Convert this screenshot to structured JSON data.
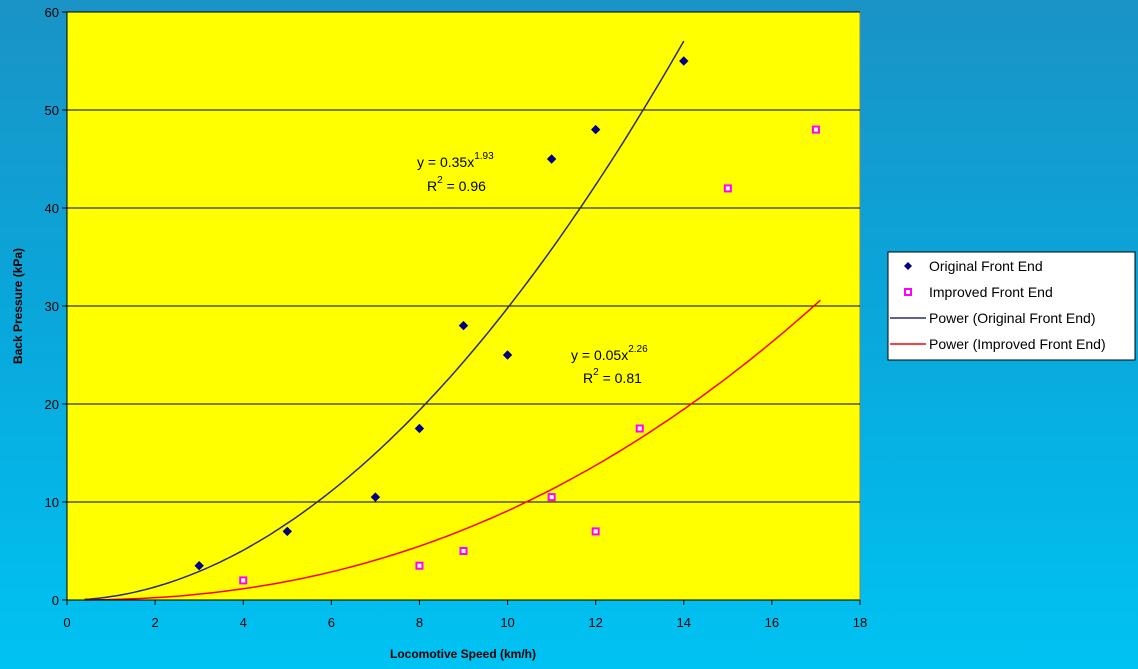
{
  "chart_data": {
    "type": "scatter",
    "xlabel": "Locomotive Speed (km/h)",
    "ylabel": "Back Pressure (kPa)",
    "xlim": [
      0,
      18
    ],
    "ylim": [
      0,
      60
    ],
    "x_ticks": [
      0,
      2,
      4,
      6,
      8,
      10,
      12,
      14,
      16,
      18
    ],
    "y_ticks": [
      0,
      10,
      20,
      30,
      40,
      50,
      60
    ],
    "grid": "horizontal",
    "legend_position": "right",
    "plot_background": "#ffff00",
    "series": [
      {
        "name": "Original Front End",
        "marker": "diamond",
        "color": "#000080",
        "x": [
          3,
          5,
          7,
          8,
          9,
          10,
          11,
          12,
          14
        ],
        "y": [
          3.5,
          7,
          10.5,
          17.5,
          28,
          25,
          45,
          48,
          55
        ]
      },
      {
        "name": "Improved Front End",
        "marker": "square",
        "color": "#ff00ff",
        "x": [
          4,
          8,
          9,
          11,
          12,
          13,
          15,
          17
        ],
        "y": [
          2,
          3.5,
          5,
          10.5,
          7,
          17.5,
          42,
          48
        ]
      }
    ],
    "trendlines": [
      {
        "name": "Power (Original Front End)",
        "type": "power",
        "coef": 0.35,
        "exp": 1.93,
        "x_range": [
          0.4,
          14
        ],
        "color": "#2b2b6e",
        "eq_main": "y = 0.35x",
        "eq_exp": "1.93",
        "r2_main": "R",
        "r2_sup": "2",
        "r2_rest": " = 0.96"
      },
      {
        "name": "Power (Improved Front End)",
        "type": "power",
        "coef": 0.05,
        "exp": 2.26,
        "x_range": [
          0.4,
          17.1
        ],
        "color": "#ff0000",
        "eq_main": "y = 0.05x",
        "eq_exp": "2.26",
        "r2_main": "R",
        "r2_sup": "2",
        "r2_rest": " = 0.81"
      }
    ],
    "legend": [
      {
        "label": "Original Front End",
        "kind": "diamond",
        "color": "#000080"
      },
      {
        "label": "Improved Front End",
        "kind": "square",
        "color": "#ff00ff"
      },
      {
        "label": "Power (Original Front End)",
        "kind": "line",
        "color": "#2b2b6e"
      },
      {
        "label": "Power (Improved Front End)",
        "kind": "line",
        "color": "#ff0000"
      }
    ]
  }
}
